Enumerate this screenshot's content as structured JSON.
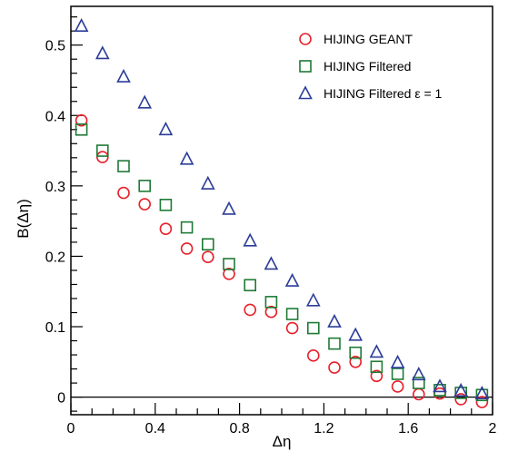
{
  "chart_data": {
    "type": "scatter",
    "xlabel": "Δη",
    "ylabel": "B(Δη)",
    "xlim": [
      0,
      2
    ],
    "ylim": [
      -0.025,
      0.555
    ],
    "x_ticks": [
      "0",
      "0.4",
      "0.8",
      "1.2",
      "1.6",
      "2"
    ],
    "y_ticks": [
      "0",
      "0.1",
      "0.2",
      "0.3",
      "0.4",
      "0.5"
    ],
    "legend_position": "top-right",
    "series": [
      {
        "name": "HIJING GEANT",
        "marker": "circle",
        "color": "#e8202a",
        "x": [
          0.05,
          0.15,
          0.25,
          0.35,
          0.45,
          0.55,
          0.65,
          0.75,
          0.85,
          0.95,
          1.05,
          1.15,
          1.25,
          1.35,
          1.45,
          1.55,
          1.65,
          1.75,
          1.85,
          1.95
        ],
        "y": [
          0.393,
          0.341,
          0.29,
          0.274,
          0.239,
          0.211,
          0.199,
          0.175,
          0.124,
          0.121,
          0.098,
          0.059,
          0.042,
          0.05,
          0.03,
          0.015,
          0.004,
          0.005,
          -0.003,
          -0.007
        ]
      },
      {
        "name": "HIJING Filtered",
        "marker": "square",
        "color": "#1f7a36",
        "x": [
          0.05,
          0.15,
          0.25,
          0.35,
          0.45,
          0.55,
          0.65,
          0.75,
          0.85,
          0.95,
          1.05,
          1.15,
          1.25,
          1.35,
          1.45,
          1.55,
          1.65,
          1.75,
          1.85,
          1.95
        ],
        "y": [
          0.38,
          0.35,
          0.328,
          0.3,
          0.273,
          0.241,
          0.217,
          0.189,
          0.159,
          0.135,
          0.118,
          0.098,
          0.076,
          0.063,
          0.043,
          0.033,
          0.02,
          0.01,
          0.006,
          0.003
        ]
      },
      {
        "name": "HIJING Filtered ε = 1",
        "marker": "triangle",
        "color": "#2b3d99",
        "x": [
          0.05,
          0.15,
          0.25,
          0.35,
          0.45,
          0.55,
          0.65,
          0.75,
          0.85,
          0.95,
          1.05,
          1.15,
          1.25,
          1.35,
          1.45,
          1.55,
          1.65,
          1.75,
          1.85,
          1.95
        ],
        "y": [
          0.527,
          0.488,
          0.455,
          0.418,
          0.38,
          0.338,
          0.303,
          0.267,
          0.222,
          0.189,
          0.165,
          0.137,
          0.107,
          0.088,
          0.064,
          0.049,
          0.032,
          0.015,
          0.009,
          0.005
        ]
      }
    ]
  }
}
